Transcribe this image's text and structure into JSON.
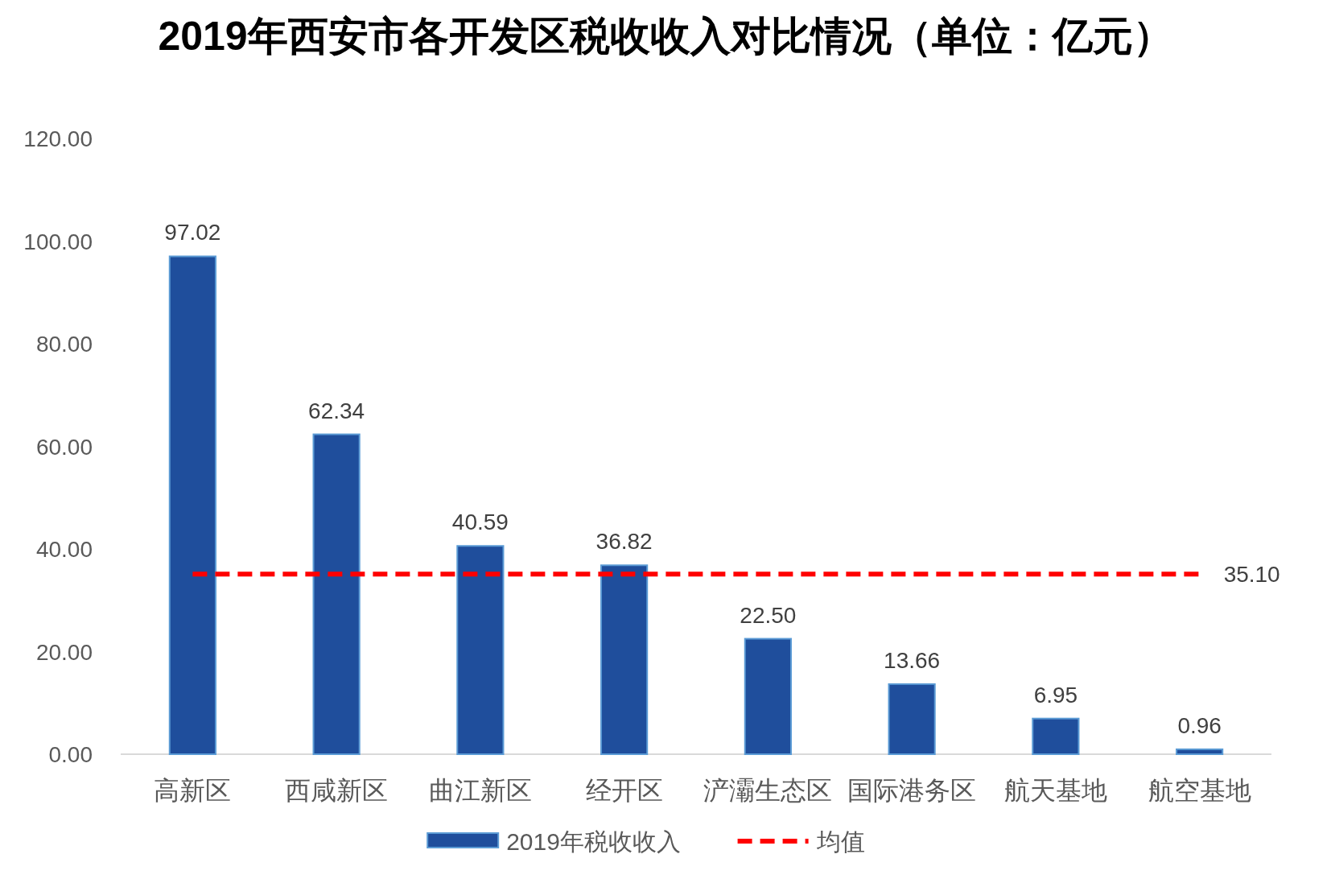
{
  "chart_data": {
    "type": "bar",
    "title": "2019年西安市各开发区税收收入对比情况（单位：亿元）",
    "categories": [
      "高新区",
      "西咸新区",
      "曲江新区",
      "经开区",
      "浐灞生态区",
      "国际港务区",
      "航天基地",
      "航空基地"
    ],
    "series": [
      {
        "name": "2019年税收收入",
        "color": "#1f4e9c",
        "values": [
          97.02,
          62.34,
          40.59,
          36.82,
          22.5,
          13.66,
          6.95,
          0.96
        ],
        "value_labels": [
          "97.02",
          "62.34",
          "40.59",
          "36.82",
          "22.50",
          "13.66",
          "6.95",
          "0.96"
        ]
      },
      {
        "name": "均值",
        "type": "line",
        "color": "#ff0000",
        "line_style": "dashed",
        "values": [
          35.1,
          35.1,
          35.1,
          35.1,
          35.1,
          35.1,
          35.1,
          35.1
        ],
        "value_labels": [
          null,
          null,
          null,
          null,
          null,
          null,
          null,
          "35.10"
        ]
      }
    ],
    "ylim": [
      0,
      120
    ],
    "yticks": [
      {
        "value": 0,
        "label": "0.00"
      },
      {
        "value": 20,
        "label": "20.00"
      },
      {
        "value": 40,
        "label": "40.00"
      },
      {
        "value": 60,
        "label": "60.00"
      },
      {
        "value": 80,
        "label": "80.00"
      },
      {
        "value": 100,
        "label": "100.00"
      },
      {
        "value": 120,
        "label": "120.00"
      }
    ],
    "grid": false,
    "legend": "bottom"
  }
}
